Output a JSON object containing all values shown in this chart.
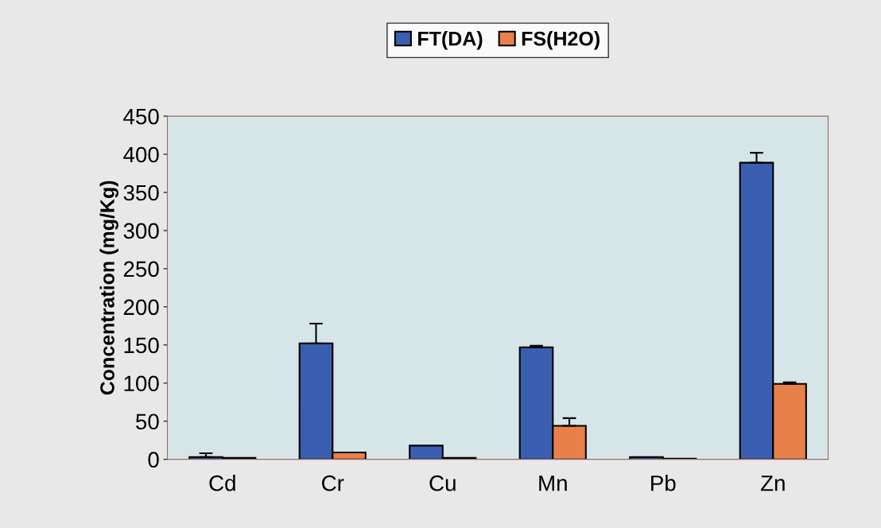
{
  "chart_data": {
    "type": "bar",
    "ylabel": "Concentration (mg/Kg)",
    "categories": [
      "Cd",
      "Cr",
      "Cu",
      "Mn",
      "Pb",
      "Zn"
    ],
    "series": [
      {
        "name": "FT(DA)",
        "color": "#3a5fb0",
        "values": [
          3,
          152,
          18,
          147,
          3,
          389
        ],
        "errors": [
          5,
          26,
          null,
          2,
          null,
          13
        ]
      },
      {
        "name": "FS(H2O)",
        "color": "#e8804a",
        "values": [
          2,
          9,
          2,
          44,
          1,
          99
        ],
        "errors": [
          null,
          null,
          null,
          10,
          null,
          2
        ]
      }
    ],
    "ylim": [
      0,
      450
    ],
    "yticks": [
      0,
      50,
      100,
      150,
      200,
      250,
      300,
      350,
      400,
      450
    ],
    "grid": false,
    "legend": "top"
  }
}
